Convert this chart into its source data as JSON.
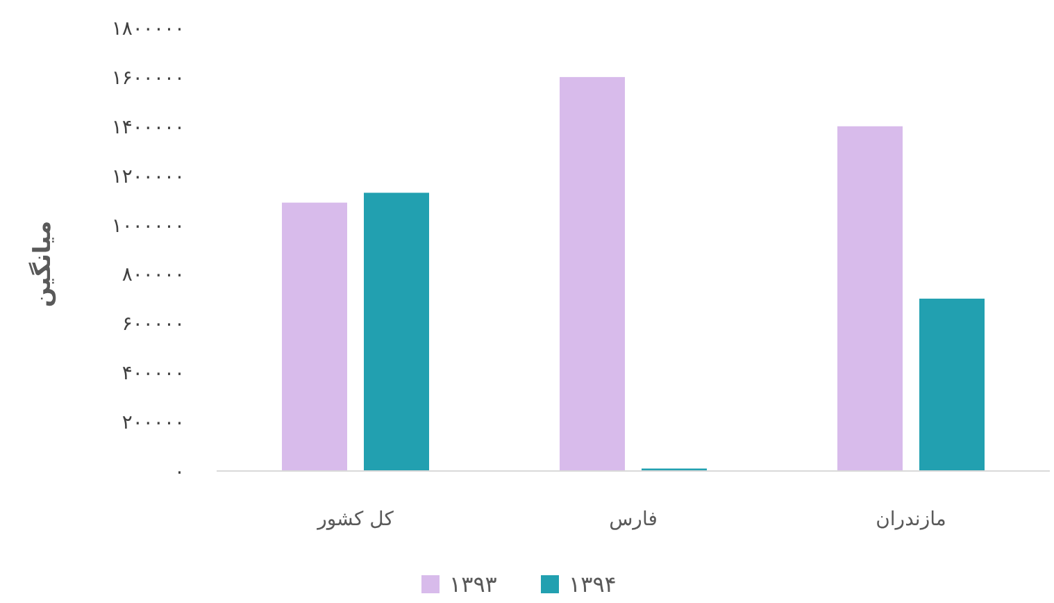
{
  "chart_data": {
    "type": "bar",
    "ylabel": "میانگین",
    "categories": [
      "کل کشور",
      "فارس",
      "مازندران"
    ],
    "series": [
      {
        "name": "۱۳۹۳",
        "color": "#d8bbeb",
        "values": [
          1090000,
          1600000,
          1400000
        ]
      },
      {
        "name": "۱۳۹۴",
        "color": "#22a0b0",
        "values": [
          1130000,
          10000,
          700000
        ]
      }
    ],
    "ylim": [
      0,
      1800000
    ],
    "yticks": [
      {
        "value": 0,
        "label": "۰"
      },
      {
        "value": 200000,
        "label": "۲۰۰۰۰۰"
      },
      {
        "value": 400000,
        "label": "۴۰۰۰۰۰"
      },
      {
        "value": 600000,
        "label": "۶۰۰۰۰۰"
      },
      {
        "value": 800000,
        "label": "۸۰۰۰۰۰"
      },
      {
        "value": 1000000,
        "label": "۱۰۰۰۰۰۰"
      },
      {
        "value": 1200000,
        "label": "۱۲۰۰۰۰۰"
      },
      {
        "value": 1400000,
        "label": "۱۴۰۰۰۰۰"
      },
      {
        "value": 1600000,
        "label": "۱۶۰۰۰۰۰"
      },
      {
        "value": 1800000,
        "label": "۱۸۰۰۰۰۰"
      }
    ],
    "legend": "bottom"
  }
}
